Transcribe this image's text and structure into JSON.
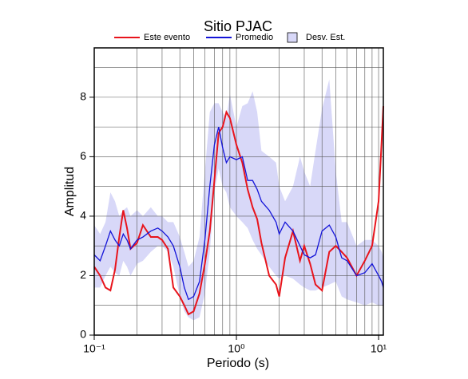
{
  "chart_data": {
    "type": "line",
    "title": "Sitio PJAC",
    "x_label": "Periodo (s)",
    "y_label": "Amplitud",
    "log_x": true,
    "grid": true,
    "xlim": [
      0.1,
      10.8
    ],
    "ylim": [
      0,
      9.66
    ],
    "xticks": [
      {
        "value": 0.1,
        "label": "10⁻¹"
      },
      {
        "value": 1,
        "label": "10⁰"
      },
      {
        "value": 10,
        "label": "10¹"
      }
    ],
    "yticks": [
      0,
      2,
      4,
      6,
      8
    ],
    "x_gridlines": [
      0.2,
      0.3,
      0.4,
      0.5,
      0.6,
      0.7,
      0.8,
      0.9,
      1,
      2,
      3,
      4,
      5,
      6,
      7,
      8,
      9,
      10
    ],
    "y_gridlines": [
      1,
      2,
      3,
      4,
      5,
      6,
      7,
      8,
      9
    ],
    "x": [
      0.1,
      0.11,
      0.12,
      0.13,
      0.14,
      0.15,
      0.16,
      0.17,
      0.18,
      0.2,
      0.22,
      0.25,
      0.28,
      0.3,
      0.33,
      0.36,
      0.4,
      0.43,
      0.46,
      0.5,
      0.55,
      0.6,
      0.65,
      0.7,
      0.75,
      0.8,
      0.85,
      0.9,
      1.0,
      1.1,
      1.2,
      1.3,
      1.4,
      1.5,
      1.7,
      1.9,
      2.0,
      2.2,
      2.5,
      2.8,
      3.0,
      3.3,
      3.6,
      4.0,
      4.5,
      5.0,
      5.5,
      6.0,
      7.0,
      8.0,
      9.0,
      10.0,
      10.5,
      10.8
    ],
    "band": {
      "name": "Desv. Est.",
      "color": "#d8d8f8",
      "upper": [
        3.7,
        3.4,
        3.8,
        4.8,
        4.5,
        4.0,
        4.2,
        4.3,
        4.0,
        4.2,
        4.0,
        4.3,
        4.0,
        4.0,
        3.8,
        3.8,
        3.3,
        2.8,
        2.3,
        2.5,
        3.3,
        5.5,
        7.5,
        7.8,
        7.8,
        7.5,
        7.3,
        8.1,
        7.0,
        7.7,
        7.8,
        8.2,
        7.5,
        6.2,
        6.0,
        5.8,
        5.0,
        4.5,
        5.0,
        6.0,
        5.5,
        5.0,
        6.2,
        7.6,
        8.6,
        5.5,
        3.8,
        3.8,
        3.0,
        3.2,
        3.2,
        3.0,
        2.8,
        2.6
      ],
      "lower": [
        1.6,
        1.6,
        2.0,
        2.3,
        2.1,
        2.0,
        2.5,
        2.3,
        2.0,
        2.4,
        2.5,
        2.8,
        3.0,
        3.0,
        2.8,
        2.3,
        1.3,
        0.8,
        0.6,
        0.5,
        0.6,
        1.4,
        2.8,
        4.8,
        5.6,
        5.0,
        4.8,
        4.3,
        4.0,
        3.8,
        3.6,
        3.2,
        2.9,
        2.7,
        2.3,
        2.0,
        1.9,
        2.0,
        1.9,
        1.7,
        1.6,
        1.5,
        1.5,
        1.6,
        1.7,
        1.8,
        1.3,
        1.2,
        1.1,
        1.0,
        1.1,
        1.0,
        1.0,
        1.0
      ]
    },
    "series": [
      {
        "name": "Este evento",
        "color": "#e8141c",
        "values": [
          2.3,
          2.0,
          1.6,
          1.5,
          2.2,
          3.3,
          4.2,
          3.6,
          2.9,
          3.1,
          3.7,
          3.3,
          3.3,
          3.2,
          2.9,
          1.6,
          1.3,
          1.0,
          0.7,
          0.8,
          1.4,
          2.4,
          3.5,
          5.2,
          6.8,
          7.0,
          7.5,
          7.3,
          6.4,
          5.8,
          4.9,
          4.3,
          3.9,
          3.1,
          2.0,
          1.7,
          1.3,
          2.6,
          3.5,
          2.5,
          3.0,
          2.4,
          1.7,
          1.5,
          2.8,
          3.0,
          2.8,
          2.6,
          2.0,
          2.5,
          3.0,
          4.5,
          6.5,
          7.7
        ]
      },
      {
        "name": "Promedio",
        "color": "#1414d8",
        "values": [
          2.7,
          2.5,
          3.0,
          3.5,
          3.2,
          3.0,
          3.4,
          3.2,
          2.9,
          3.2,
          3.3,
          3.5,
          3.6,
          3.5,
          3.3,
          3.0,
          2.3,
          1.6,
          1.2,
          1.3,
          1.8,
          3.2,
          5.0,
          6.4,
          7.0,
          6.3,
          5.8,
          6.0,
          5.9,
          6.0,
          5.2,
          5.2,
          4.9,
          4.5,
          4.2,
          3.8,
          3.4,
          3.8,
          3.5,
          3.0,
          2.7,
          2.6,
          2.7,
          3.5,
          3.7,
          3.3,
          2.6,
          2.5,
          2.0,
          2.1,
          2.4,
          2.0,
          1.8,
          1.6
        ]
      }
    ]
  }
}
